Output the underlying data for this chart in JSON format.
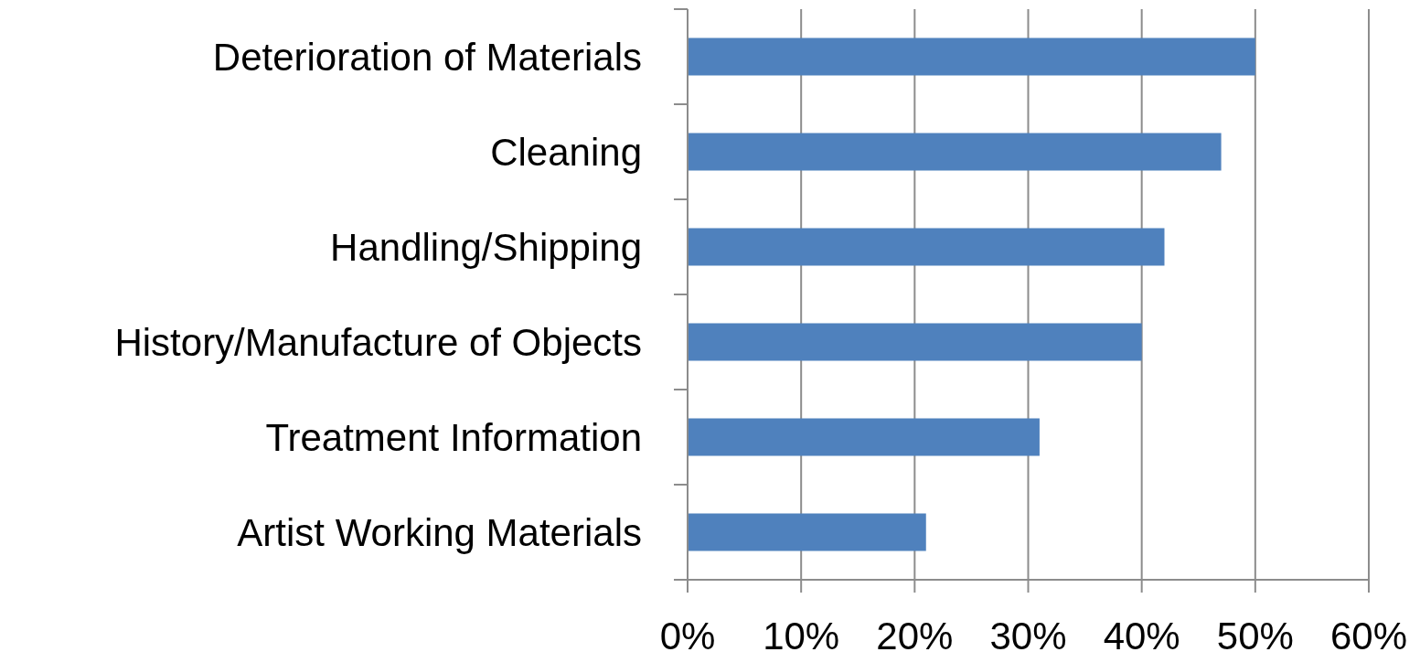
{
  "chart_data": {
    "type": "bar",
    "orientation": "horizontal",
    "categories": [
      "Deterioration of Materials",
      "Cleaning",
      "Handling/Shipping",
      "History/Manufacture of Objects",
      "Treatment Information",
      "Artist Working Materials"
    ],
    "values": [
      50,
      47,
      42,
      40,
      31,
      21
    ],
    "color": "#4f81bd",
    "xlim": [
      0,
      60
    ],
    "xticks": [
      {
        "value": 0,
        "label": "0%"
      },
      {
        "value": 10,
        "label": "10%"
      },
      {
        "value": 20,
        "label": "20%"
      },
      {
        "value": 30,
        "label": "30%"
      },
      {
        "value": 40,
        "label": "40%"
      },
      {
        "value": 50,
        "label": "50%"
      },
      {
        "value": 60,
        "label": "60%"
      }
    ],
    "grid": "x"
  }
}
